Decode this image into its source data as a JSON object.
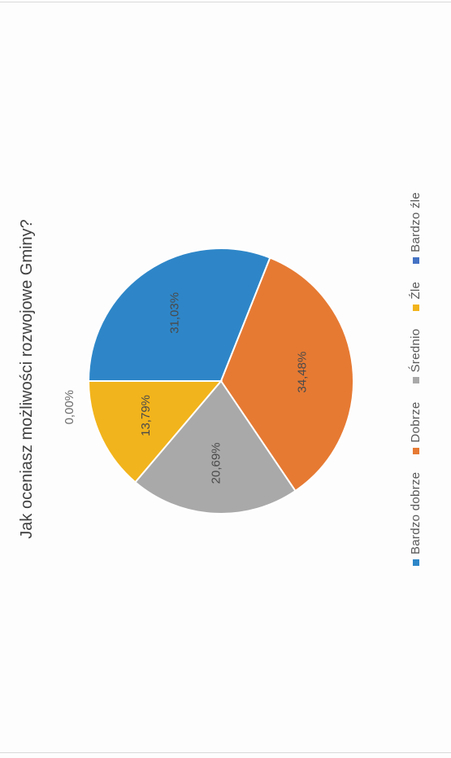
{
  "chart_data": {
    "type": "pie",
    "title": "Jak oceniasz możliwości rozwojowe Gminy?",
    "categories": [
      "Bardzo dobrze",
      "Dobrze",
      "Średnio",
      "Źle",
      "Bardzo źle"
    ],
    "values": [
      31.03,
      34.48,
      20.69,
      13.79,
      0.0
    ],
    "data_labels": [
      "31,03%",
      "34,48%",
      "20,69%",
      "13,79%",
      "0,00%"
    ],
    "colors": [
      "#2E86C8",
      "#E67A33",
      "#A9A9A9",
      "#F2B41C",
      "#4472C4"
    ],
    "legend_position": "bottom"
  }
}
